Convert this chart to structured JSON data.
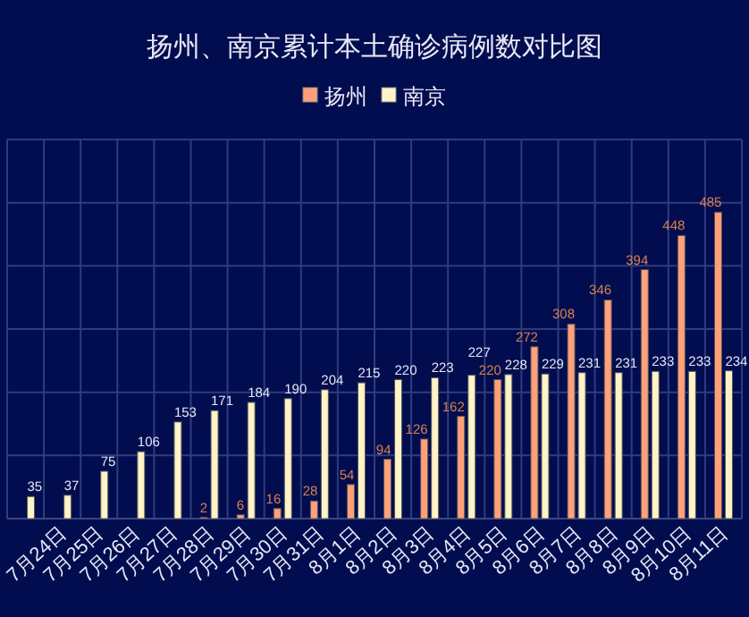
{
  "chart_data": {
    "type": "bar",
    "title": "扬州、南京累计本土确诊病例数对比图",
    "categories": [
      null,
      "7月24日",
      "7月25日",
      "7月26日",
      "7月27日",
      "7月28日",
      "7月29日",
      "7月30日",
      "7月31日",
      "8月1日",
      "8月2日",
      "8月3日",
      "8月4日",
      "8月5日",
      "8月6日",
      "8月7日",
      "8月8日",
      "8月9日",
      "8月10日",
      "8月11日"
    ],
    "series": [
      {
        "name": "扬州",
        "color": "#ffa07a",
        "values": [
          null,
          null,
          null,
          null,
          null,
          2,
          6,
          16,
          28,
          54,
          94,
          126,
          162,
          220,
          272,
          308,
          346,
          394,
          448,
          485
        ]
      },
      {
        "name": "南京",
        "color": "#fff3c8",
        "values": [
          35,
          37,
          75,
          106,
          153,
          171,
          184,
          190,
          204,
          215,
          220,
          223,
          227,
          228,
          229,
          231,
          231,
          233,
          233,
          234
        ]
      }
    ],
    "ylim": [
      0,
      600
    ],
    "yticks": [
      {
        "value": 0,
        "label": null
      },
      {
        "value": 100,
        "label": null
      },
      {
        "value": 200,
        "label": null
      },
      {
        "value": 300,
        "label": null
      },
      {
        "value": 400,
        "label": null
      },
      {
        "value": 500,
        "label": null
      },
      {
        "value": 600,
        "label": null
      }
    ],
    "tick_labels": "x",
    "grid": true,
    "legend": "top",
    "data_labels": true
  }
}
